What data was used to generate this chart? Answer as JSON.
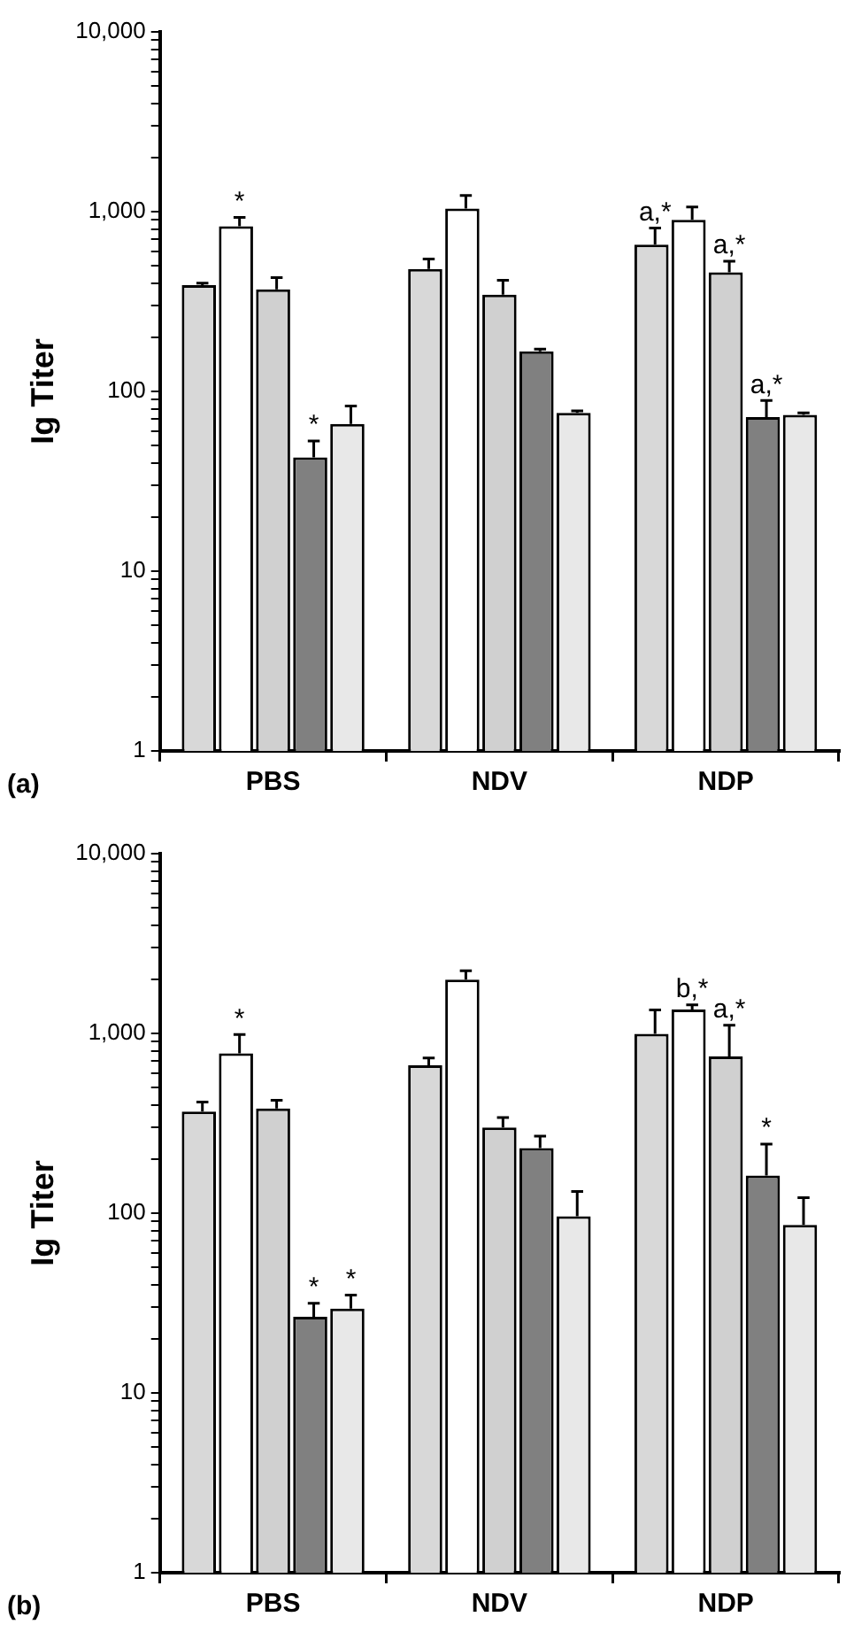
{
  "chart_data": [
    {
      "type": "bar",
      "ylabel": "Ig Titer",
      "categories": [
        "PBS",
        "NDV",
        "NDP"
      ],
      "log": true,
      "legend": false,
      "grid": false,
      "ylim": [
        1,
        10000
      ],
      "yticks": [
        1,
        {
          "value": 2,
          "label": null
        },
        {
          "value": 3,
          "label": null
        },
        {
          "value": 4,
          "label": null
        },
        {
          "value": 5,
          "label": null
        },
        {
          "value": 6,
          "label": null
        },
        {
          "value": 7,
          "label": null
        },
        {
          "value": 8,
          "label": null
        },
        {
          "value": 9,
          "label": null
        },
        10,
        {
          "value": 20,
          "label": null
        },
        {
          "value": 30,
          "label": null
        },
        {
          "value": 40,
          "label": null
        },
        {
          "value": 50,
          "label": null
        },
        {
          "value": 60,
          "label": null
        },
        {
          "value": 70,
          "label": null
        },
        {
          "value": 80,
          "label": null
        },
        {
          "value": 90,
          "label": null
        },
        100,
        {
          "value": 200,
          "label": null
        },
        {
          "value": 300,
          "label": null
        },
        {
          "value": 400,
          "label": null
        },
        {
          "value": 500,
          "label": null
        },
        {
          "value": 600,
          "label": null
        },
        {
          "value": 700,
          "label": null
        },
        {
          "value": 800,
          "label": null
        },
        {
          "value": 900,
          "label": null
        },
        {
          "value": 1000,
          "label": "1,000"
        },
        {
          "value": 2000,
          "label": null
        },
        {
          "value": 3000,
          "label": null
        },
        {
          "value": 4000,
          "label": null
        },
        {
          "value": 5000,
          "label": null
        },
        {
          "value": 6000,
          "label": null
        },
        {
          "value": 7000,
          "label": null
        },
        {
          "value": 8000,
          "label": null
        },
        {
          "value": 9000,
          "label": null
        },
        {
          "value": 10000,
          "label": "10,000"
        }
      ],
      "series": [
        {
          "color": "#d8d8d8",
          "values": [
            390,
            480,
            655
          ],
          "errors": [
            10,
            65,
            155
          ],
          "value_labels": [
            null,
            null,
            "a,*"
          ]
        },
        {
          "color": "#ffffff",
          "values": [
            830,
            1040,
            900
          ],
          "errors": [
            100,
            190,
            160
          ],
          "value_labels": [
            "*",
            null,
            null
          ]
        },
        {
          "color": "#d0d0d0",
          "values": [
            370,
            345,
            460
          ],
          "errors": [
            60,
            70,
            70
          ],
          "value_labels": [
            null,
            null,
            "a,*"
          ]
        },
        {
          "color": "#808080",
          "values": [
            43,
            167,
            72
          ],
          "errors": [
            10,
            5,
            17
          ],
          "value_labels": [
            "*",
            null,
            "a,*"
          ]
        },
        {
          "color": "#e8e8e8",
          "values": [
            66,
            76,
            74
          ],
          "errors": [
            17,
            2,
            2
          ]
        }
      ],
      "annotations": [
        "(a)"
      ]
    },
    {
      "type": "bar",
      "ylabel": "Ig Titer",
      "categories": [
        "PBS",
        "NDV",
        "NDP"
      ],
      "log": true,
      "legend": false,
      "grid": false,
      "ylim": [
        1,
        10000
      ],
      "yticks": [
        1,
        {
          "value": 2,
          "label": null
        },
        {
          "value": 3,
          "label": null
        },
        {
          "value": 4,
          "label": null
        },
        {
          "value": 5,
          "label": null
        },
        {
          "value": 6,
          "label": null
        },
        {
          "value": 7,
          "label": null
        },
        {
          "value": 8,
          "label": null
        },
        {
          "value": 9,
          "label": null
        },
        10,
        {
          "value": 20,
          "label": null
        },
        {
          "value": 30,
          "label": null
        },
        {
          "value": 40,
          "label": null
        },
        {
          "value": 50,
          "label": null
        },
        {
          "value": 60,
          "label": null
        },
        {
          "value": 70,
          "label": null
        },
        {
          "value": 80,
          "label": null
        },
        {
          "value": 90,
          "label": null
        },
        100,
        {
          "value": 200,
          "label": null
        },
        {
          "value": 300,
          "label": null
        },
        {
          "value": 400,
          "label": null
        },
        {
          "value": 500,
          "label": null
        },
        {
          "value": 600,
          "label": null
        },
        {
          "value": 700,
          "label": null
        },
        {
          "value": 800,
          "label": null
        },
        {
          "value": 900,
          "label": null
        },
        {
          "value": 1000,
          "label": "1,000"
        },
        {
          "value": 2000,
          "label": null
        },
        {
          "value": 3000,
          "label": null
        },
        {
          "value": 4000,
          "label": null
        },
        {
          "value": 5000,
          "label": null
        },
        {
          "value": 6000,
          "label": null
        },
        {
          "value": 7000,
          "label": null
        },
        {
          "value": 8000,
          "label": null
        },
        {
          "value": 9000,
          "label": null
        },
        {
          "value": 10000,
          "label": "10,000"
        }
      ],
      "series": [
        {
          "color": "#d8d8d8",
          "values": [
            367,
            665,
            995
          ],
          "errors": [
            48,
            65,
            355
          ]
        },
        {
          "color": "#ffffff",
          "values": [
            775,
            1990,
            1360
          ],
          "errors": [
            210,
            240,
            80
          ],
          "value_labels": [
            "*",
            null,
            "b,*"
          ]
        },
        {
          "color": "#d0d0d0",
          "values": [
            382,
            300,
            745
          ],
          "errors": [
            43,
            40,
            365
          ],
          "value_labels": [
            null,
            null,
            "a,*"
          ]
        },
        {
          "color": "#808080",
          "values": [
            26.5,
            230,
            162
          ],
          "errors": [
            5,
            38,
            80
          ],
          "value_labels": [
            "*",
            null,
            "*"
          ]
        },
        {
          "color": "#e8e8e8",
          "values": [
            29.5,
            96,
            86
          ],
          "errors": [
            5.5,
            36,
            36
          ],
          "value_labels": [
            "*",
            null,
            null
          ]
        }
      ],
      "annotations": [
        "(b)"
      ]
    }
  ]
}
